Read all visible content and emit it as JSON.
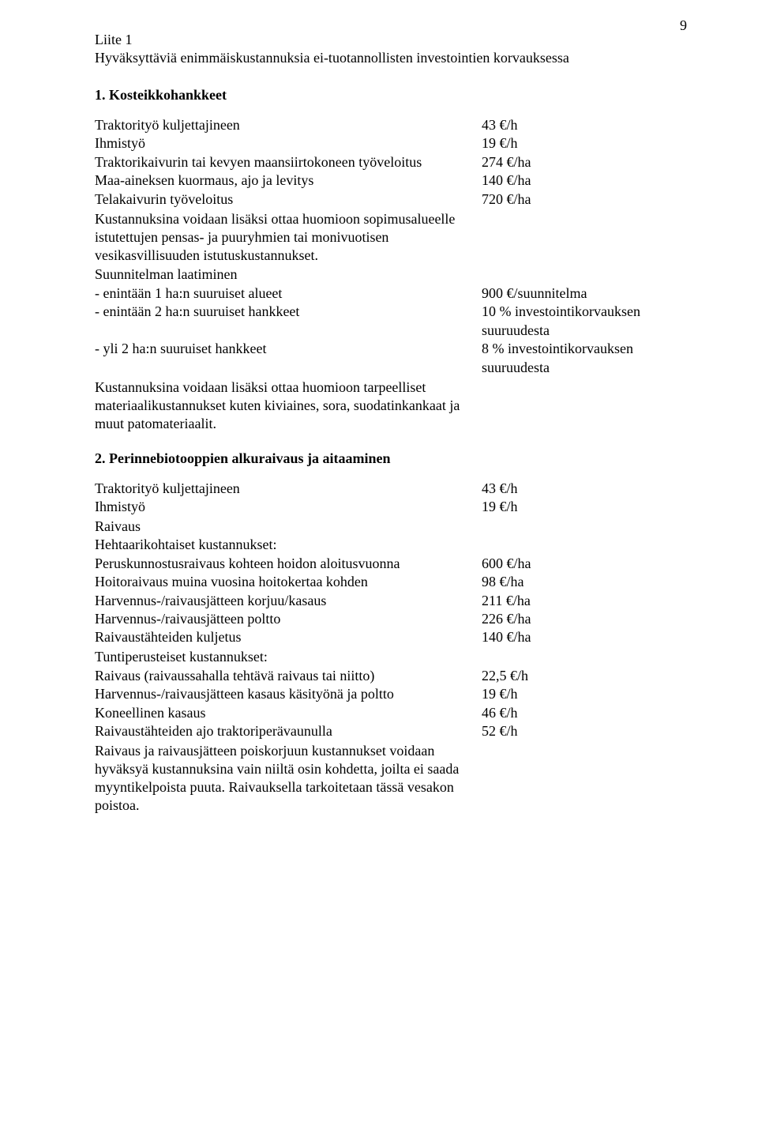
{
  "page_number": "9",
  "liite": "Liite 1",
  "intro": "Hyväksyttäviä enimmäiskustannuksia ei-tuotannollisten investointien korvauksessa",
  "section1": {
    "title": "1. Kosteikkohankkeet",
    "rows": [
      {
        "label": "Traktorityö kuljettajineen",
        "value": "43 €/h"
      },
      {
        "label": "Ihmistyö",
        "value": "19 €/h"
      },
      {
        "label": "Traktorikaivurin tai kevyen maansiirtokoneen työveloitus",
        "value": "274 €/ha"
      },
      {
        "label": "Maa-aineksen kuormaus, ajo ja levitys",
        "value": "140 €/ha"
      },
      {
        "label": "Telakaivurin työveloitus",
        "value": "720 €/ha"
      }
    ],
    "note1": "Kustannuksina voidaan lisäksi ottaa huomioon sopimusalueelle istutettujen pensas- ja puuryhmien tai monivuotisen vesikasvillisuuden istutuskustannukset.",
    "subhead": "Suunnitelman laatiminen",
    "plan_rows": [
      {
        "label": "- enintään 1 ha:n suuruiset alueet",
        "value": "900 €/suunnitelma"
      },
      {
        "label": "- enintään 2 ha:n suuruiset hankkeet",
        "value": "10 % investointikorvauksen suuruudesta"
      },
      {
        "label": "- yli 2 ha:n suuruiset hankkeet",
        "value": "8 % investointikorvauksen suuruudesta"
      }
    ],
    "note2": "Kustannuksina voidaan lisäksi ottaa huomioon tarpeelliset materiaalikustannukset kuten kiviaines, sora, suodatinkankaat ja muut patomateriaalit."
  },
  "section2": {
    "title": "2. Perinnebiotooppien alkuraivaus ja aitaaminen",
    "rows1": [
      {
        "label": "Traktorityö kuljettajineen",
        "value": "43 €/h"
      },
      {
        "label": "Ihmistyö",
        "value": "19 €/h"
      }
    ],
    "sub1": "Raivaus",
    "sub2": "Hehtaarikohtaiset kustannukset:",
    "rows2": [
      {
        "label": "Peruskunnostusraivaus kohteen hoidon aloitusvuonna",
        "value": "600 €/ha"
      },
      {
        "label": "Hoitoraivaus muina vuosina hoitokertaa kohden",
        "value": "98 €/ha"
      },
      {
        "label": "Harvennus-/raivausjätteen korjuu/kasaus",
        "value": "211 €/ha"
      },
      {
        "label": "Harvennus-/raivausjätteen poltto",
        "value": "226 €/ha"
      },
      {
        "label": "Raivaustähteiden kuljetus",
        "value": "140 €/ha"
      }
    ],
    "sub3": "Tuntiperusteiset kustannukset:",
    "rows3": [
      {
        "label": "Raivaus (raivaussahalla tehtävä raivaus tai niitto)",
        "value": "22,5 €/h"
      },
      {
        "label": "Harvennus-/raivausjätteen kasaus käsityönä ja poltto",
        "value": "19 €/h"
      },
      {
        "label": "Koneellinen kasaus",
        "value": "46 €/h"
      },
      {
        "label": "Raivaustähteiden ajo traktoriperävaunulla",
        "value": "52 €/h"
      }
    ],
    "note": "Raivaus ja raivausjätteen poiskorjuun kustannukset voidaan hyväksyä kustannuksina vain niiltä osin kohdetta, joilta ei saada myyntikelpoista puuta. Raivauksella tarkoitetaan tässä vesakon poistoa."
  }
}
